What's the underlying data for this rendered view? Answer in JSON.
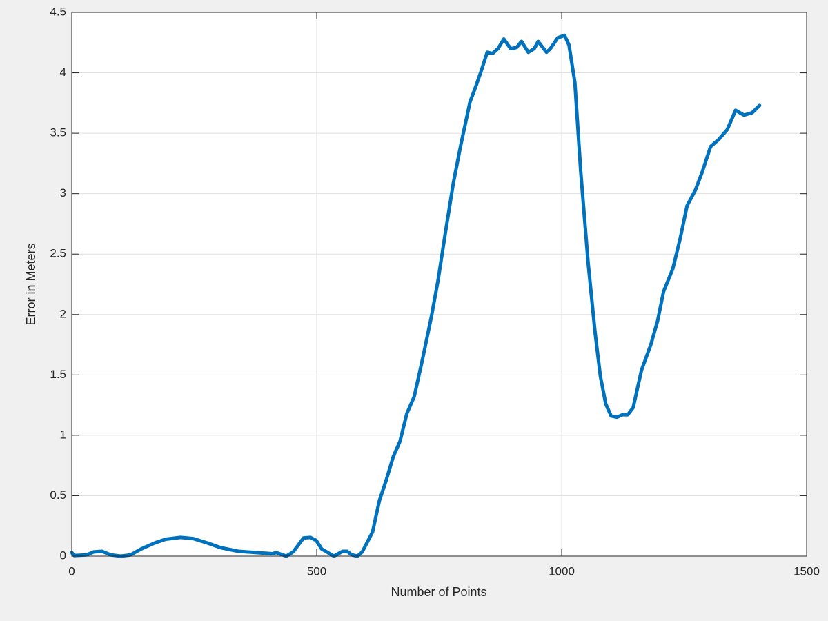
{
  "chart_data": {
    "type": "line",
    "x_label": "Number of Points",
    "y_label": "Error in Meters",
    "xlim": [
      0,
      1500
    ],
    "ylim": [
      0,
      4.5
    ],
    "xticks": [
      0,
      500,
      1000,
      1500
    ],
    "yticks": [
      0,
      0.5,
      1,
      1.5,
      2,
      2.5,
      3,
      3.5,
      4,
      4.5
    ],
    "grid": true,
    "series": [
      {
        "color": "#0072bd",
        "x": [
          0,
          5,
          30,
          45,
          62,
          80,
          100,
          120,
          142,
          170,
          192,
          222,
          248,
          276,
          304,
          340,
          375,
          410,
          417,
          438,
          452,
          473,
          487,
          499,
          510,
          535,
          553,
          562,
          572,
          583,
          593,
          614,
          628,
          642,
          656,
          670,
          684,
          699,
          716,
          734,
          748,
          762,
          779,
          794,
          813,
          825,
          837,
          848,
          859,
          870,
          882,
          896,
          908,
          918,
          932,
          944,
          952,
          969,
          977,
          992,
          1006,
          1015,
          1027,
          1039,
          1054,
          1068,
          1079,
          1090,
          1101,
          1113,
          1124,
          1135,
          1146,
          1163,
          1182,
          1196,
          1208,
          1227,
          1242,
          1256,
          1273,
          1287,
          1304,
          1321,
          1338,
          1355,
          1372,
          1389,
          1404
        ],
        "values": [
          0.03,
          0.005,
          0.01,
          0.035,
          0.04,
          0.01,
          0,
          0.01,
          0.06,
          0.11,
          0.14,
          0.155,
          0.145,
          0.11,
          0.07,
          0.04,
          0.03,
          0.02,
          0.03,
          0,
          0.035,
          0.15,
          0.155,
          0.13,
          0.06,
          0,
          0.04,
          0.04,
          0.01,
          0,
          0.035,
          0.2,
          0.46,
          0.63,
          0.82,
          0.95,
          1.18,
          1.32,
          1.63,
          1.98,
          2.29,
          2.66,
          3.09,
          3.4,
          3.76,
          3.89,
          4.03,
          4.17,
          4.16,
          4.2,
          4.28,
          4.2,
          4.21,
          4.26,
          4.17,
          4.2,
          4.26,
          4.17,
          4.2,
          4.29,
          4.31,
          4.23,
          3.92,
          3.18,
          2.43,
          1.86,
          1.49,
          1.26,
          1.16,
          1.15,
          1.17,
          1.17,
          1.23,
          1.54,
          1.75,
          1.95,
          2.19,
          2.38,
          2.63,
          2.9,
          3.03,
          3.18,
          3.39,
          3.45,
          3.53,
          3.69,
          3.65,
          3.67,
          3.73
        ]
      }
    ]
  }
}
